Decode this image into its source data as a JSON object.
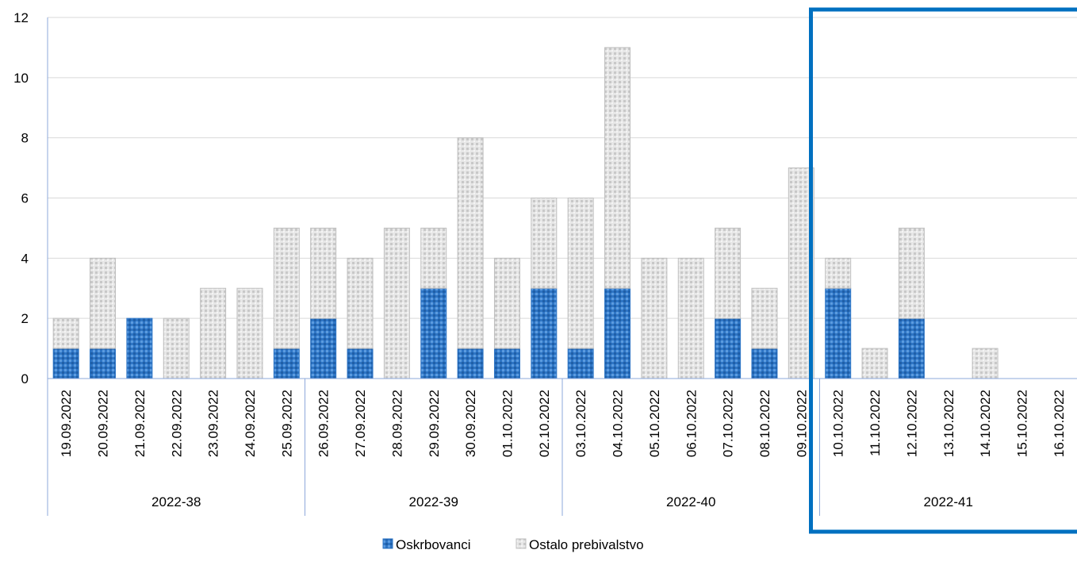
{
  "chart_data": {
    "type": "bar",
    "stacked": true,
    "categories": [
      "19.09.2022",
      "20.09.2022",
      "21.09.2022",
      "22.09.2022",
      "23.09.2022",
      "24.09.2022",
      "25.09.2022",
      "26.09.2022",
      "27.09.2022",
      "28.09.2022",
      "29.09.2022",
      "30.09.2022",
      "01.10.2022",
      "02.10.2022",
      "03.10.2022",
      "04.10.2022",
      "05.10.2022",
      "06.10.2022",
      "07.10.2022",
      "08.10.2022",
      "09.10.2022",
      "10.10.2022",
      "11.10.2022",
      "12.10.2022",
      "13.10.2022",
      "14.10.2022",
      "15.10.2022",
      "16.10.2022"
    ],
    "groups": [
      {
        "label": "2022-38",
        "count": 7
      },
      {
        "label": "2022-39",
        "count": 7
      },
      {
        "label": "2022-40",
        "count": 7
      },
      {
        "label": "2022-41",
        "count": 7
      }
    ],
    "series": [
      {
        "name": "Oskrbovanci",
        "color": "#2E75C5",
        "values": [
          1,
          1,
          2,
          0,
          0,
          0,
          1,
          2,
          1,
          0,
          3,
          1,
          1,
          3,
          1,
          3,
          0,
          0,
          2,
          1,
          0,
          3,
          0,
          2,
          0,
          0,
          0,
          0
        ]
      },
      {
        "name": "Ostalo prebivalstvo",
        "color": "#D9D9D9",
        "values": [
          1,
          3,
          0,
          2,
          3,
          3,
          4,
          3,
          3,
          5,
          2,
          7,
          3,
          3,
          5,
          8,
          4,
          4,
          3,
          2,
          7,
          1,
          1,
          3,
          0,
          1,
          0,
          0
        ]
      }
    ],
    "ylim": [
      0,
      12
    ],
    "yticks": [
      0,
      2,
      4,
      6,
      8,
      10,
      12
    ],
    "grid": true,
    "legend_position": "bottom",
    "highlight_group": "2022-41",
    "highlight_color": "#0070C0"
  }
}
